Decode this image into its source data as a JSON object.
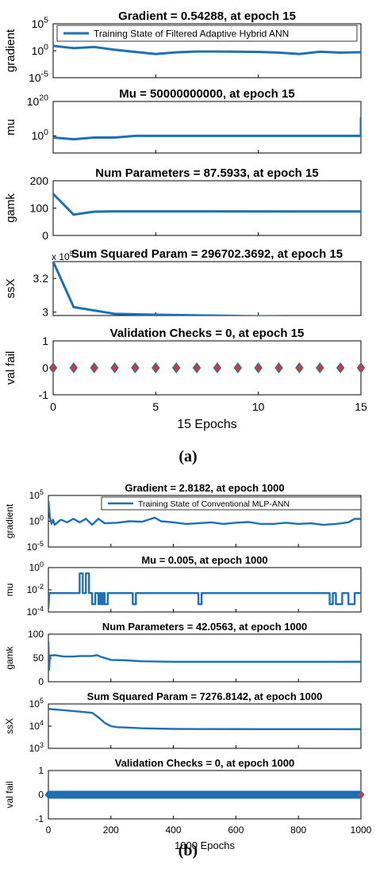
{
  "figure_labels": {
    "a": "(a)",
    "b": "(b)"
  },
  "panel_a": {
    "legend": "Training  State of Filtered Adaptive Hybrid ANN",
    "xlabel": "15 Epochs",
    "xticks": [
      "0",
      "5",
      "10",
      "15"
    ],
    "subplots": [
      {
        "title": "Gradient = 0.54288, at epoch 15",
        "ylabel": "gradient"
      },
      {
        "title": "Mu = 50000000000, at epoch 15",
        "ylabel": "mu"
      },
      {
        "title": "Num Parameters = 87.5933, at epoch 15",
        "ylabel": "gamk"
      },
      {
        "title": "Sum Squared Param = 296702.3692, at epoch 15",
        "ylabel": "ssX"
      },
      {
        "title": "Validation Checks = 0, at epoch 15",
        "ylabel": "val fail"
      }
    ]
  },
  "panel_b": {
    "legend": "Training State of Conventional MLP-ANN",
    "xlabel": "1000 Epochs",
    "xticks": [
      "0",
      "200",
      "400",
      "600",
      "800",
      "1000"
    ],
    "subplots": [
      {
        "title": "Gradient = 2.8182, at epoch 1000",
        "ylabel": "gradient"
      },
      {
        "title": "Mu = 0.005, at epoch 1000",
        "ylabel": "mu"
      },
      {
        "title": "Num Parameters = 42.0563, at epoch 1000",
        "ylabel": "gamk"
      },
      {
        "title": "Sum Squared Param = 7276.8142, at epoch 1000",
        "ylabel": "ssX"
      },
      {
        "title": "Validation Checks = 0, at epoch 1000",
        "ylabel": "val fail"
      }
    ]
  },
  "chart_data": [
    {
      "type": "line",
      "panel": "a",
      "title": "Gradient = 0.54288, at epoch 15",
      "ylabel": "gradient",
      "yscale": "log",
      "xlim": [
        0,
        15
      ],
      "ylim": [
        1e-05,
        100000
      ],
      "yticks": [
        {
          "v": 1e-05,
          "b": "10",
          "e": "-5"
        },
        {
          "v": 1,
          "b": "10",
          "e": "0"
        },
        {
          "v": 100000,
          "b": "10",
          "e": "5"
        }
      ],
      "series": [
        {
          "name": "Training  State of Filtered Adaptive Hybrid ANN",
          "x": [
            0,
            1,
            2,
            3,
            4,
            5,
            6,
            7,
            8,
            9,
            10,
            11,
            12,
            13,
            14,
            15
          ],
          "y": [
            8,
            3,
            5,
            1.5,
            0.6,
            0.25,
            0.5,
            0.7,
            0.7,
            0.65,
            0.6,
            0.45,
            0.25,
            0.65,
            0.45,
            0.54
          ]
        }
      ]
    },
    {
      "type": "line",
      "panel": "a",
      "title": "Mu = 50000000000, at epoch 15",
      "ylabel": "mu",
      "yscale": "log",
      "xlim": [
        0,
        15
      ],
      "ylim": [
        1e-10,
        1e+20
      ],
      "yticks": [
        {
          "v": 1,
          "b": "10",
          "e": "0"
        },
        {
          "v": 1e+20,
          "b": "10",
          "e": "20"
        }
      ],
      "series": [
        {
          "x": [
            0,
            1,
            2,
            3,
            4,
            15,
            15
          ],
          "y": [
            0.1,
            0.01,
            0.1,
            0.1,
            1,
            1,
            50000000000.0
          ]
        }
      ]
    },
    {
      "type": "line",
      "panel": "a",
      "title": "Num Parameters = 87.5933, at epoch 15",
      "ylabel": "gamk",
      "yscale": "linear",
      "xlim": [
        0,
        15
      ],
      "ylim": [
        0,
        200
      ],
      "yticks": [
        {
          "v": 0,
          "t": "0"
        },
        {
          "v": 100,
          "t": "100"
        },
        {
          "v": 200,
          "t": "200"
        }
      ],
      "series": [
        {
          "x": [
            0,
            1,
            2,
            3,
            4,
            5,
            15
          ],
          "y": [
            152,
            76,
            87,
            88,
            88,
            88,
            87.6
          ]
        }
      ]
    },
    {
      "type": "line",
      "panel": "a",
      "title": "Sum Squared Param = 296702.3692, at epoch 15",
      "ylabel": "ssX",
      "yscale": "linear",
      "xlim": [
        0,
        15
      ],
      "ylim": [
        2.98,
        3.3
      ],
      "multiplier": "x 10^5",
      "yticks": [
        {
          "v": 3,
          "t": "3"
        },
        {
          "v": 3.2,
          "t": "3.2"
        }
      ],
      "series": [
        {
          "x": [
            0,
            1,
            2,
            3,
            5,
            10,
            15
          ],
          "y": [
            3.3,
            3.03,
            3.01,
            2.99,
            2.985,
            2.975,
            2.967
          ]
        }
      ]
    },
    {
      "type": "scatter",
      "panel": "a",
      "title": "Validation Checks = 0, at epoch 15",
      "ylabel": "val fail",
      "yscale": "linear",
      "xlim": [
        0,
        15
      ],
      "ylim": [
        -1,
        1
      ],
      "yticks": [
        {
          "v": -1,
          "t": "-1"
        },
        {
          "v": 0,
          "t": "0"
        },
        {
          "v": 1,
          "t": "1"
        }
      ],
      "series": [
        {
          "x": [
            0,
            1,
            2,
            3,
            4,
            5,
            6,
            7,
            8,
            9,
            10,
            11,
            12,
            13,
            14,
            15
          ],
          "y": [
            0,
            0,
            0,
            0,
            0,
            0,
            0,
            0,
            0,
            0,
            0,
            0,
            0,
            0,
            0,
            0
          ]
        }
      ]
    },
    {
      "type": "line",
      "panel": "b",
      "title": "Gradient = 2.8182, at epoch 1000",
      "ylabel": "gradient",
      "yscale": "log",
      "xlim": [
        0,
        1000
      ],
      "ylim": [
        1e-05,
        100000
      ],
      "yticks": [
        {
          "v": 1e-05,
          "b": "10",
          "e": "-5"
        },
        {
          "v": 1,
          "b": "10",
          "e": "0"
        },
        {
          "v": 100000,
          "b": "10",
          "e": "5"
        }
      ],
      "series": [
        {
          "name": "Training State of Conventional MLP-ANN",
          "x": [
            0,
            5,
            10,
            15,
            20,
            40,
            60,
            80,
            100,
            120,
            140,
            160,
            180,
            220,
            260,
            300,
            340,
            360,
            400,
            440,
            480,
            520,
            560,
            600,
            640,
            680,
            720,
            760,
            800,
            840,
            880,
            920,
            960,
            980,
            1000
          ],
          "y": [
            10000,
            5,
            0.3,
            2,
            0.2,
            2,
            0.6,
            3,
            0.6,
            3,
            0.2,
            3,
            0.4,
            0.5,
            1,
            0.8,
            5,
            1,
            0.6,
            0.3,
            0.4,
            0.6,
            0.3,
            0.5,
            0.7,
            0.3,
            0.3,
            0.5,
            0.3,
            0.4,
            0.2,
            0.3,
            0.6,
            3,
            2.8
          ]
        }
      ]
    },
    {
      "type": "line",
      "panel": "b",
      "title": "Mu = 0.005, at epoch 1000",
      "ylabel": "mu",
      "yscale": "log",
      "xlim": [
        0,
        1000
      ],
      "ylim": [
        0.0001,
        1
      ],
      "yticks": [
        {
          "v": 0.0001,
          "b": "10",
          "e": "-4"
        },
        {
          "v": 0.01,
          "b": "10",
          "e": "-2"
        },
        {
          "v": 1,
          "b": "10",
          "e": "0"
        }
      ],
      "series": [
        {
          "x": [
            0,
            3,
            8,
            100,
            100,
            110,
            110,
            120,
            120,
            130,
            130,
            140,
            140,
            150,
            150,
            160,
            160,
            165,
            165,
            170,
            170,
            175,
            175,
            180,
            180,
            190,
            190,
            200,
            200,
            270,
            270,
            280,
            280,
            290,
            290,
            480,
            480,
            490,
            490,
            500,
            500,
            900,
            900,
            910,
            910,
            920,
            920,
            940,
            940,
            960,
            960,
            980,
            980,
            1000
          ],
          "y": [
            0.0002,
            0.005,
            0.005,
            0.005,
            0.3,
            0.3,
            0.005,
            0.005,
            0.3,
            0.3,
            0.005,
            0.005,
            0.0005,
            0.0005,
            0.005,
            0.005,
            0.0005,
            0.0005,
            0.005,
            0.005,
            0.0005,
            0.0005,
            0.005,
            0.005,
            0.0005,
            0.0005,
            0.005,
            0.005,
            0.005,
            0.005,
            0.0005,
            0.0005,
            0.005,
            0.005,
            0.005,
            0.005,
            0.0005,
            0.0005,
            0.005,
            0.005,
            0.005,
            0.005,
            0.0005,
            0.0005,
            0.005,
            0.005,
            0.0005,
            0.0005,
            0.005,
            0.005,
            0.0005,
            0.0005,
            0.005,
            0.005
          ]
        }
      ]
    },
    {
      "type": "line",
      "panel": "b",
      "title": "Num Parameters = 42.0563, at epoch 1000",
      "ylabel": "gamk",
      "yscale": "linear",
      "xlim": [
        0,
        1000
      ],
      "ylim": [
        0,
        100
      ],
      "yticks": [
        {
          "v": 0,
          "t": "0"
        },
        {
          "v": 50,
          "t": "50"
        },
        {
          "v": 100,
          "t": "100"
        }
      ],
      "series": [
        {
          "x": [
            0,
            2,
            5,
            20,
            50,
            80,
            100,
            140,
            155,
            170,
            200,
            250,
            300,
            400,
            500,
            600,
            700,
            800,
            900,
            1000
          ],
          "y": [
            85,
            25,
            55,
            56,
            53,
            53,
            54,
            54,
            56,
            52,
            46,
            45,
            43,
            42,
            42,
            42,
            42,
            42,
            42,
            42.06
          ]
        }
      ]
    },
    {
      "type": "line",
      "panel": "b",
      "title": "Sum Squared Param = 7276.8142, at epoch 1000",
      "ylabel": "ssX",
      "yscale": "log",
      "xlim": [
        0,
        1000
      ],
      "ylim": [
        1000,
        100000
      ],
      "yticks": [
        {
          "v": 1000,
          "b": "10",
          "e": "3"
        },
        {
          "v": 10000,
          "b": "10",
          "e": "4"
        },
        {
          "v": 100000,
          "b": "10",
          "e": "5"
        }
      ],
      "series": [
        {
          "x": [
            0,
            10,
            50,
            100,
            140,
            160,
            180,
            200,
            220,
            260,
            300,
            400,
            500,
            600,
            700,
            800,
            900,
            1000
          ],
          "y": [
            60000,
            58000,
            52000,
            45000,
            40000,
            25000,
            14000,
            10000,
            9000,
            8500,
            8000,
            7500,
            7400,
            7350,
            7300,
            7300,
            7300,
            7276.8
          ]
        }
      ]
    },
    {
      "type": "scatter",
      "panel": "b",
      "title": "Validation Checks = 0, at epoch 1000",
      "ylabel": "val fail",
      "yscale": "linear",
      "xlim": [
        0,
        1000
      ],
      "ylim": [
        -1,
        1
      ],
      "yticks": [
        {
          "v": -1,
          "t": "-1"
        },
        {
          "v": 0,
          "t": "0"
        },
        {
          "v": 1,
          "t": "1"
        }
      ],
      "series": [
        {
          "x_range": [
            0,
            1000
          ],
          "y": 0,
          "count": 1001
        }
      ]
    }
  ]
}
